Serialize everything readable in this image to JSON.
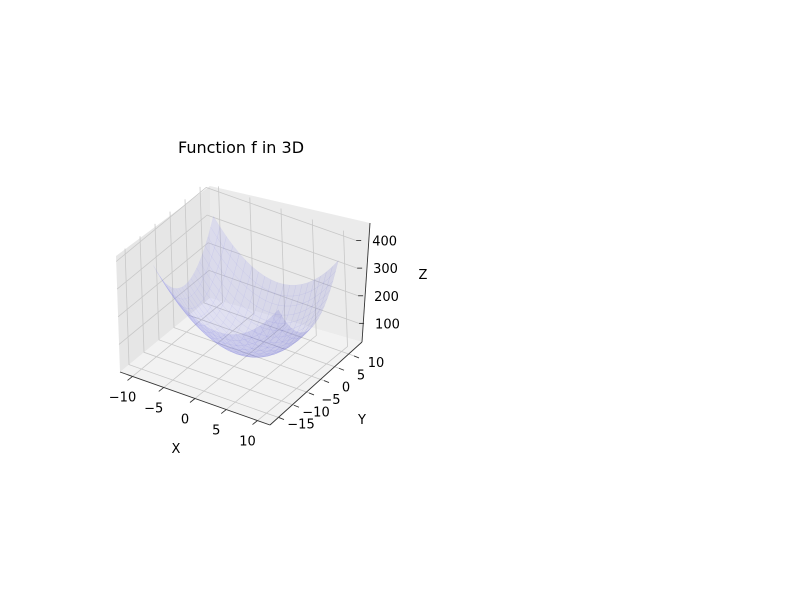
{
  "chart_data": {
    "type": "surface",
    "title": "Function f in 3D",
    "xlabel": "X",
    "ylabel": "Y",
    "zlabel": "Z",
    "xlim": [
      -12,
      12
    ],
    "ylim": [
      -18,
      12
    ],
    "zlim": [
      0,
      420
    ],
    "x_ticks": [
      -10,
      -5,
      0,
      5,
      10
    ],
    "x_tick_labels": [
      "−10",
      "−5",
      "0",
      "5",
      "10"
    ],
    "y_ticks": [
      -15,
      -10,
      -5,
      0,
      5,
      10
    ],
    "y_tick_labels": [
      "−15",
      "−10",
      "−5",
      "0",
      "5",
      "10"
    ],
    "y_tick_labels_visible": [
      "−10",
      "−5",
      "0",
      "5",
      "10"
    ],
    "z_ticks": [
      100,
      200,
      300,
      400
    ],
    "z_tick_labels": [
      "100",
      "200",
      "300",
      "400"
    ],
    "grid": true,
    "surface": {
      "x_range": [
        -10,
        10
      ],
      "y_range": [
        -10,
        10
      ],
      "z_min": 10,
      "z_max": 330,
      "color": "#7a7ae0",
      "alpha": 0.28
    }
  }
}
